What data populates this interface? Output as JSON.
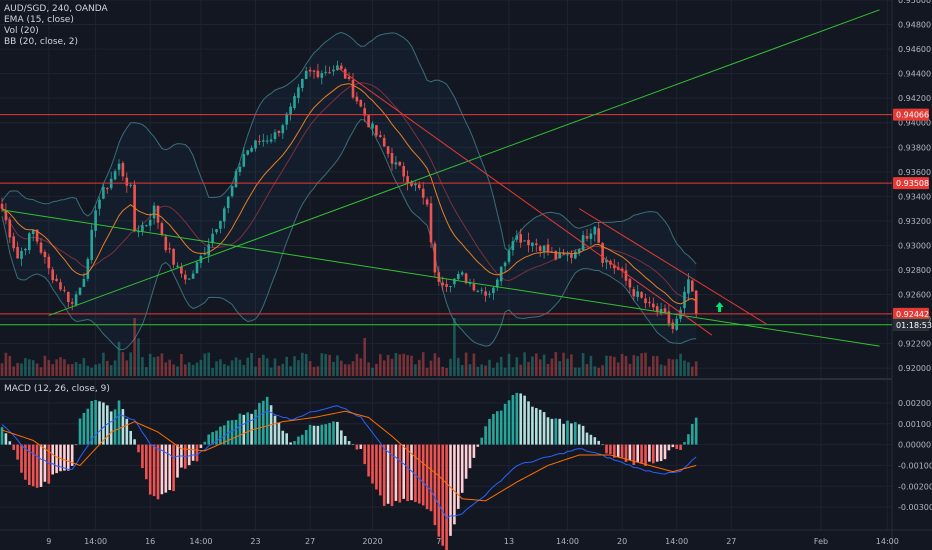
{
  "legend": {
    "symbol": "AUD/SGD, 240, OANDA",
    "ema": "EMA (15, close)",
    "vol": "Vol (20)",
    "bb": "BB (20, close, 2)",
    "macd": "MACD (12, 26, close, 9)"
  },
  "colors": {
    "background": "#131722",
    "grid": "#1f2330",
    "bull": "#26a69a",
    "bear": "#ef5350",
    "ema": "#e67e22",
    "bb": "#3a6e78",
    "trend_green": "#33c033",
    "trend_red": "#e53935",
    "macd_line": "#2962ff",
    "signal_line": "#ff6d00"
  },
  "chart_data": [
    {
      "type": "candlestick",
      "title": "",
      "xlabel": "",
      "ylabel": "",
      "ylim": [
        0.9192,
        0.95
      ],
      "yticks": [
        "0.95000",
        "0.94800",
        "0.94600",
        "0.94400",
        "0.94200",
        "0.94000",
        "0.93800",
        "0.93600",
        "0.93400",
        "0.93200",
        "0.93000",
        "0.92800",
        "0.92600",
        "0.92400",
        "0.92200",
        "0.92000"
      ],
      "xticks": [
        "9",
        "14:00",
        "16",
        "14:00",
        "23",
        "27",
        "2020",
        "7",
        "13",
        "14:00",
        "20",
        "14:00",
        "27",
        "Feb",
        "14:00"
      ],
      "close_anchors": [
        [
          0,
          0.933
        ],
        [
          4,
          0.929
        ],
        [
          8,
          0.9312
        ],
        [
          12,
          0.928
        ],
        [
          16,
          0.9262
        ],
        [
          18,
          0.9252
        ],
        [
          22,
          0.9285
        ],
        [
          24,
          0.9332
        ],
        [
          28,
          0.9355
        ],
        [
          30,
          0.9365
        ],
        [
          33,
          0.9345
        ],
        [
          34,
          0.9312
        ],
        [
          37,
          0.9318
        ],
        [
          39,
          0.933
        ],
        [
          42,
          0.93
        ],
        [
          45,
          0.928
        ],
        [
          48,
          0.9272
        ],
        [
          51,
          0.929
        ],
        [
          54,
          0.931
        ],
        [
          58,
          0.9338
        ],
        [
          62,
          0.9375
        ],
        [
          66,
          0.9385
        ],
        [
          70,
          0.939
        ],
        [
          74,
          0.941
        ],
        [
          78,
          0.944
        ],
        [
          82,
          0.9442
        ],
        [
          86,
          0.9445
        ],
        [
          88,
          0.9438
        ],
        [
          90,
          0.9425
        ],
        [
          94,
          0.94
        ],
        [
          98,
          0.938
        ],
        [
          101,
          0.9365
        ],
        [
          104,
          0.9355
        ],
        [
          107,
          0.9345
        ],
        [
          109,
          0.933
        ],
        [
          110,
          0.9305
        ],
        [
          111,
          0.9275
        ],
        [
          114,
          0.927
        ],
        [
          118,
          0.9275
        ],
        [
          122,
          0.9265
        ],
        [
          125,
          0.9262
        ],
        [
          128,
          0.928
        ],
        [
          131,
          0.9308
        ],
        [
          134,
          0.9305
        ],
        [
          138,
          0.93
        ],
        [
          142,
          0.929
        ],
        [
          146,
          0.9292
        ],
        [
          149,
          0.9305
        ],
        [
          152,
          0.9318
        ],
        [
          154,
          0.929
        ],
        [
          158,
          0.928
        ],
        [
          162,
          0.9262
        ],
        [
          166,
          0.925
        ],
        [
          170,
          0.9242
        ],
        [
          172,
          0.9232
        ],
        [
          174,
          0.9245
        ],
        [
          176,
          0.9272
        ],
        [
          178,
          0.9244
        ]
      ],
      "volume_range": [
        0,
        1
      ],
      "horizontal_levels": [
        {
          "value": 0.94066,
          "color": "red",
          "label": "0.94066"
        },
        {
          "value": 0.93508,
          "color": "red",
          "label": "0.93508"
        },
        {
          "value": 0.92442,
          "color": "red",
          "label": "0.92442"
        },
        {
          "value": 0.92354,
          "color": "green",
          "label": "0.92354"
        }
      ],
      "countdown": "01:18:53",
      "trendlines": [
        {
          "color": "green",
          "from": [
            12,
            0.9243
          ],
          "to": [
            225,
            0.9492
          ]
        },
        {
          "color": "green",
          "from": [
            0,
            0.9329
          ],
          "to": [
            225,
            0.9218
          ]
        },
        {
          "color": "red",
          "from": [
            86,
            0.9445
          ],
          "to": [
            182,
            0.9227
          ]
        },
        {
          "color": "red",
          "from": [
            148,
            0.933
          ],
          "to": [
            196,
            0.9236
          ]
        }
      ],
      "annotation": {
        "type": "arrow-up",
        "x": 184,
        "value": 0.9249
      }
    },
    {
      "type": "histogram+line",
      "title": "MACD (12, 26, close, 9)",
      "ylim": [
        -0.0041,
        0.0031
      ],
      "yticks": [
        "0.00200",
        "0.00100",
        "0.00000",
        "-0.00100",
        "-0.00200",
        "-0.00300"
      ],
      "macd_anchors": [
        [
          0,
          0.001
        ],
        [
          6,
          -0.0002
        ],
        [
          12,
          -0.0009
        ],
        [
          18,
          -0.0012
        ],
        [
          24,
          0.0005
        ],
        [
          30,
          0.0014
        ],
        [
          34,
          0.0012
        ],
        [
          38,
          0.0
        ],
        [
          44,
          -0.0006
        ],
        [
          50,
          -0.0005
        ],
        [
          56,
          0.0003
        ],
        [
          62,
          0.001
        ],
        [
          68,
          0.0016
        ],
        [
          74,
          0.0012
        ],
        [
          80,
          0.0016
        ],
        [
          86,
          0.0019
        ],
        [
          92,
          0.0013
        ],
        [
          98,
          -0.0002
        ],
        [
          104,
          -0.0011
        ],
        [
          110,
          -0.0022
        ],
        [
          114,
          -0.0035
        ],
        [
          118,
          -0.0033
        ],
        [
          124,
          -0.0024
        ],
        [
          132,
          -0.001
        ],
        [
          140,
          -0.0006
        ],
        [
          148,
          -0.0002
        ],
        [
          152,
          -0.0004
        ],
        [
          158,
          -0.0008
        ],
        [
          164,
          -0.0012
        ],
        [
          170,
          -0.0014
        ],
        [
          174,
          -0.0013
        ],
        [
          178,
          -0.0006
        ]
      ],
      "signal_anchors": [
        [
          0,
          0.0007
        ],
        [
          8,
          0.0002
        ],
        [
          14,
          -0.0006
        ],
        [
          20,
          -0.001
        ],
        [
          28,
          0.0006
        ],
        [
          34,
          0.0011
        ],
        [
          40,
          0.0006
        ],
        [
          46,
          -0.0002
        ],
        [
          52,
          -0.0003
        ],
        [
          58,
          0.0002
        ],
        [
          64,
          0.0007
        ],
        [
          72,
          0.0011
        ],
        [
          80,
          0.0013
        ],
        [
          88,
          0.0016
        ],
        [
          94,
          0.0013
        ],
        [
          100,
          0.0004
        ],
        [
          106,
          -0.0006
        ],
        [
          112,
          -0.0015
        ],
        [
          118,
          -0.0026
        ],
        [
          124,
          -0.0027
        ],
        [
          132,
          -0.0018
        ],
        [
          140,
          -0.001
        ],
        [
          148,
          -0.0005
        ],
        [
          156,
          -0.0005
        ],
        [
          164,
          -0.0009
        ],
        [
          172,
          -0.0013
        ],
        [
          178,
          -0.001
        ]
      ]
    }
  ]
}
